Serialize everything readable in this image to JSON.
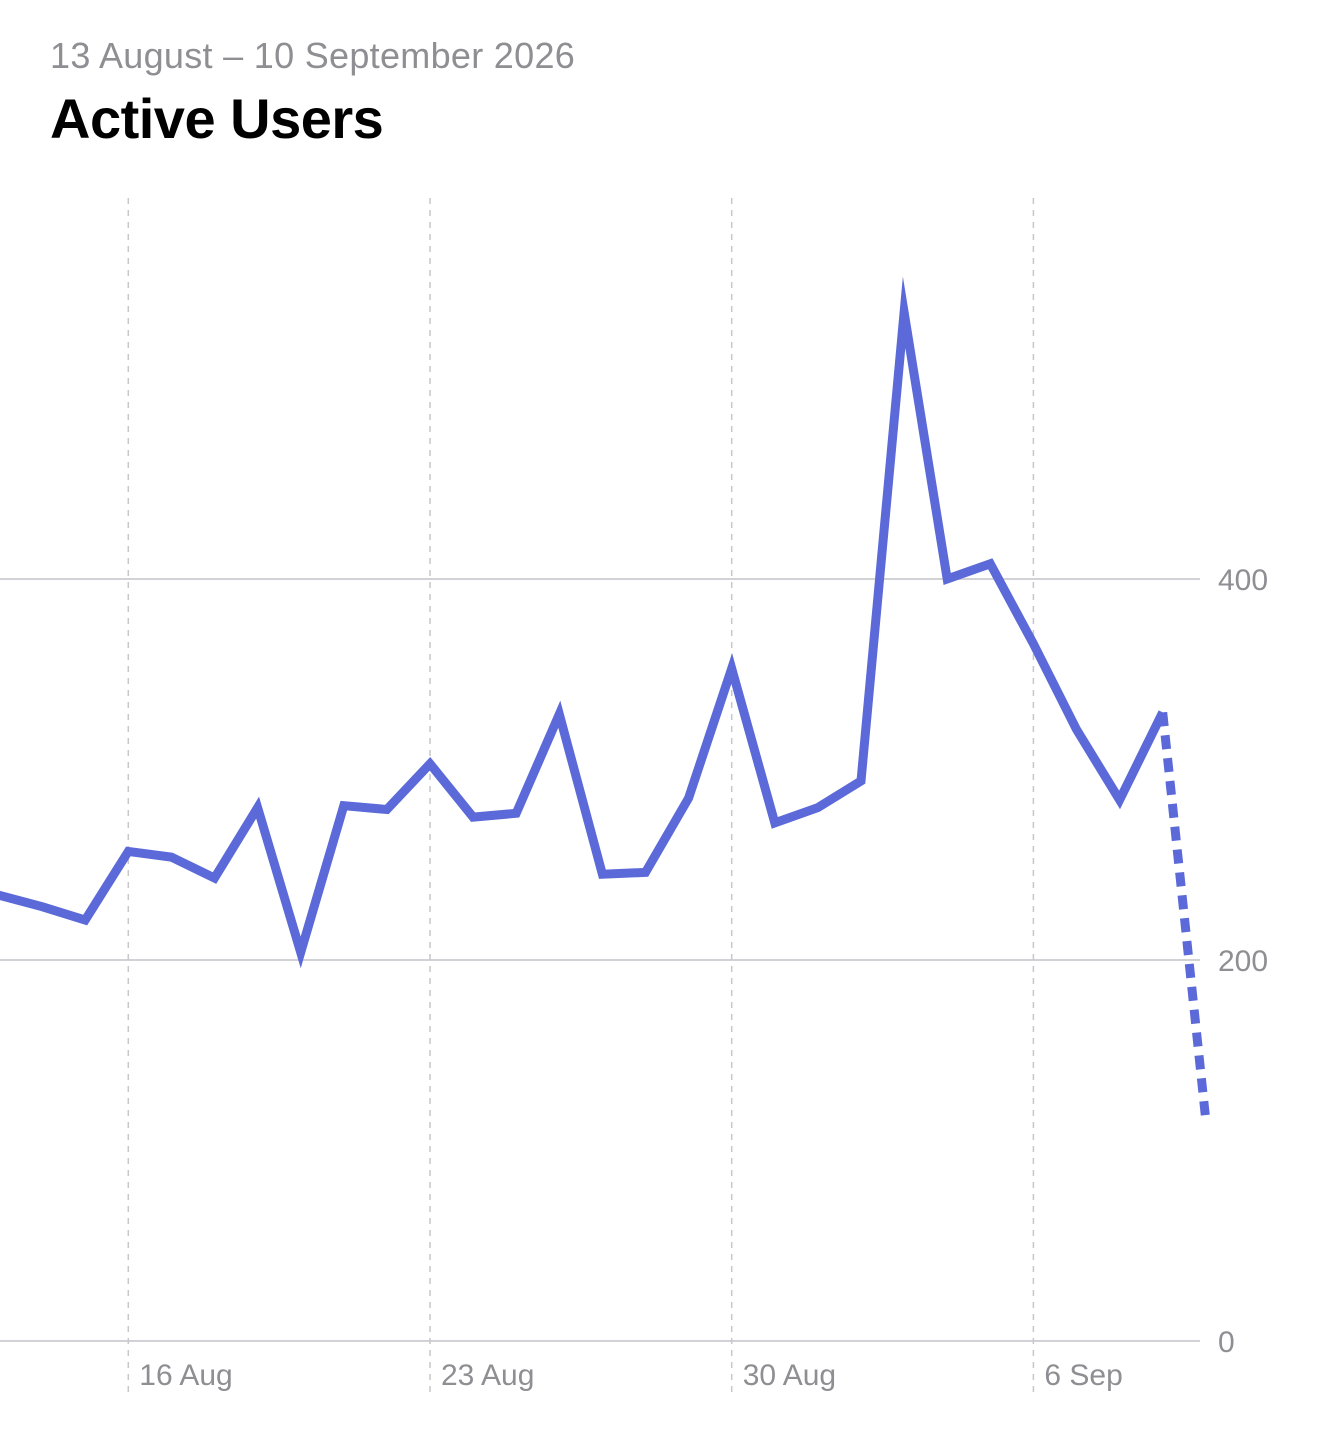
{
  "header": {
    "date_range": "13 August – 10 September 2026",
    "title": "Active Users"
  },
  "chart_data": {
    "type": "line",
    "title": "Active Users",
    "subtitle": "13 August – 10 September 2026",
    "x": [
      "2026-08-13",
      "2026-08-14",
      "2026-08-15",
      "2026-08-16",
      "2026-08-17",
      "2026-08-18",
      "2026-08-19",
      "2026-08-20",
      "2026-08-21",
      "2026-08-22",
      "2026-08-23",
      "2026-08-24",
      "2026-08-25",
      "2026-08-26",
      "2026-08-27",
      "2026-08-28",
      "2026-08-29",
      "2026-08-30",
      "2026-08-31",
      "2026-09-01",
      "2026-09-02",
      "2026-09-03",
      "2026-09-04",
      "2026-09-05",
      "2026-09-06",
      "2026-09-07",
      "2026-09-08",
      "2026-09-09",
      "2026-09-10"
    ],
    "series": [
      {
        "values": [
          234,
          228,
          221,
          257,
          254,
          243,
          280,
          204,
          281,
          279,
          303,
          275,
          277,
          329,
          245,
          246,
          285,
          353,
          272,
          280,
          294,
          540,
          400,
          408,
          366,
          321,
          284,
          330,
          116
        ],
        "projected_from_index": 27,
        "color": "#5b6ad8"
      }
    ],
    "y_ticks": [
      0,
      200,
      400
    ],
    "y_tick_labels": [
      "0",
      "200",
      "400"
    ],
    "x_ticks": [
      "2026-08-16",
      "2026-08-23",
      "2026-08-30",
      "2026-09-06"
    ],
    "x_tick_labels": [
      "16 Aug",
      "23 Aug",
      "30 Aug",
      "6 Sep"
    ],
    "ylim": [
      0,
      560
    ],
    "xlabel": "",
    "ylabel": "",
    "grid": true,
    "y_axis_position": "right",
    "colors": {
      "line": "#5b6ad8",
      "grid_solid": "#d1d1d6",
      "grid_dashed": "#c7c7cc",
      "tick_text": "#8e8e93"
    }
  }
}
